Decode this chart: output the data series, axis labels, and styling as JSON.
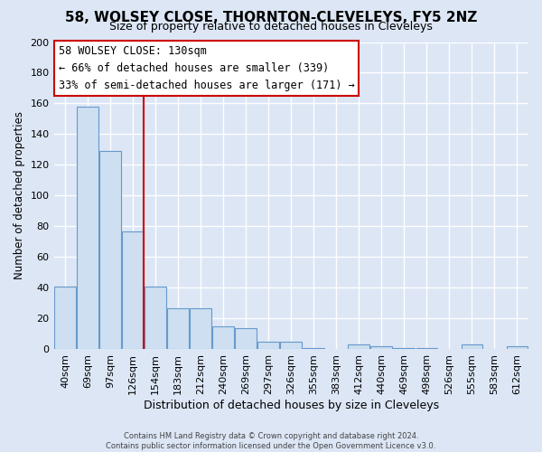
{
  "title": "58, WOLSEY CLOSE, THORNTON-CLEVELEYS, FY5 2NZ",
  "subtitle": "Size of property relative to detached houses in Cleveleys",
  "xlabel": "Distribution of detached houses by size in Cleveleys",
  "ylabel": "Number of detached properties",
  "bar_labels": [
    "40sqm",
    "69sqm",
    "97sqm",
    "126sqm",
    "154sqm",
    "183sqm",
    "212sqm",
    "240sqm",
    "269sqm",
    "297sqm",
    "326sqm",
    "355sqm",
    "383sqm",
    "412sqm",
    "440sqm",
    "469sqm",
    "498sqm",
    "526sqm",
    "555sqm",
    "583sqm",
    "612sqm"
  ],
  "bar_values": [
    41,
    158,
    129,
    77,
    41,
    27,
    27,
    15,
    14,
    5,
    5,
    1,
    0,
    3,
    2,
    1,
    1,
    0,
    3,
    0,
    2
  ],
  "bar_color": "#cddff0",
  "bar_edge_color": "#6699cc",
  "vline_color": "#cc0000",
  "annotation_text": "58 WOLSEY CLOSE: 130sqm\n← 66% of detached houses are smaller (339)\n33% of semi-detached houses are larger (171) →",
  "annotation_box_color": "#ffffff",
  "annotation_box_edge": "#cc0000",
  "ylim": [
    0,
    200
  ],
  "yticks": [
    0,
    20,
    40,
    60,
    80,
    100,
    120,
    140,
    160,
    180,
    200
  ],
  "footer_line1": "Contains HM Land Registry data © Crown copyright and database right 2024.",
  "footer_line2": "Contains public sector information licensed under the Open Government Licence v3.0.",
  "bg_color": "#dce6f5",
  "plot_bg_color": "#dce6f5",
  "grid_color": "#ffffff",
  "title_fontsize": 11,
  "subtitle_fontsize": 9,
  "xlabel_fontsize": 9,
  "ylabel_fontsize": 8.5,
  "tick_fontsize": 8,
  "annotation_fontsize": 8.5,
  "footer_fontsize": 6,
  "vline_x_index": 3
}
